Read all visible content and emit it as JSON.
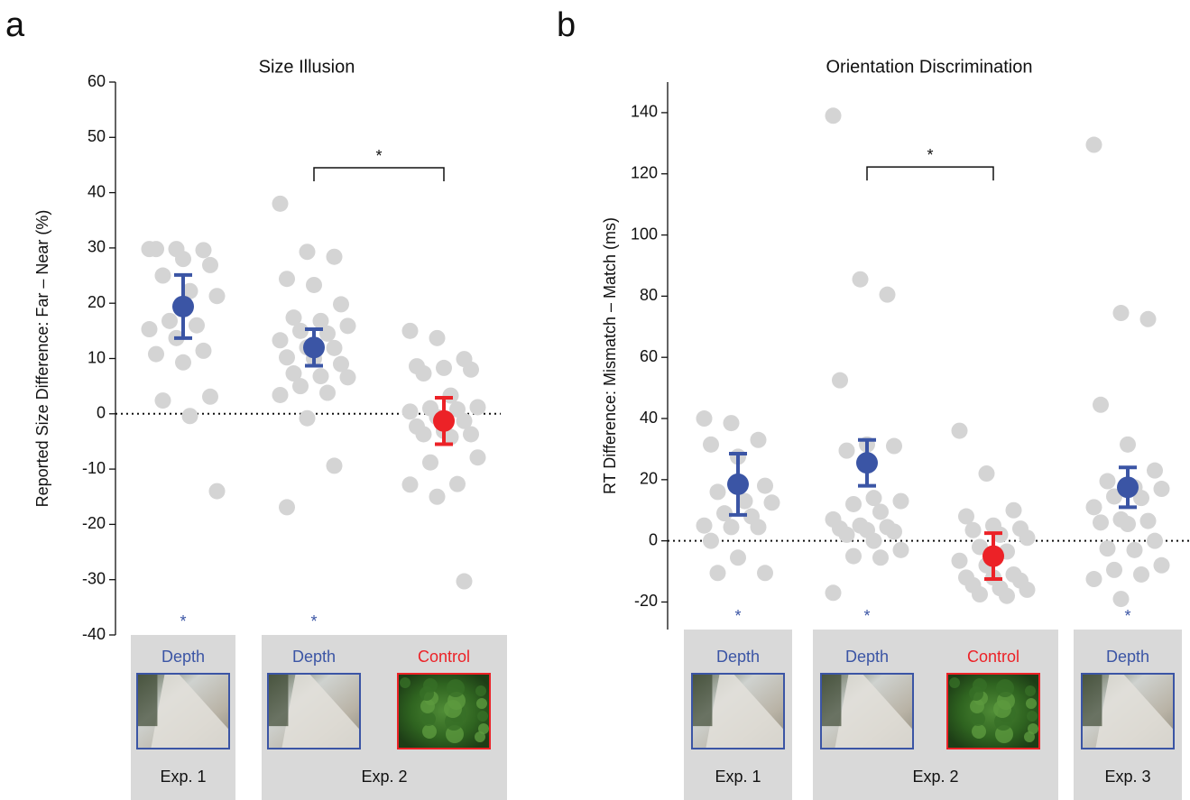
{
  "chart_data": [
    {
      "type": "dotplot",
      "panel": "a",
      "title": "Size Illusion",
      "y_label": "Reported Size Difference: Far – Near (%)",
      "ylim": [
        -40,
        60
      ],
      "yticks": [
        -40,
        -30,
        -20,
        -10,
        0,
        10,
        20,
        30,
        40,
        50,
        60
      ],
      "reference_line": 0,
      "bracket": {
        "groups": [
          1,
          2
        ],
        "label": "*"
      },
      "point_color": "#d4d4d4",
      "experiments": [
        {
          "label": "Exp. 1",
          "groups": [
            {
              "name": "Depth",
              "color": "#3b55a5",
              "mean": 19.4,
              "error": 5.7,
              "significance": "*",
              "values": [
                29.8,
                29.8,
                29.6,
                29.8,
                28,
                26.9,
                25,
                22.2,
                21.3,
                16.8,
                16,
                15.3,
                13.7,
                11.4,
                10.8,
                9.3,
                3.1,
                2.4,
                -0.4,
                -14
              ]
            }
          ]
        },
        {
          "label": "Exp. 2",
          "groups": [
            {
              "name": "Depth",
              "color": "#3b55a5",
              "mean": 12,
              "error": 3.3,
              "significance": "*",
              "values": [
                38,
                29.3,
                28.4,
                24.4,
                23.3,
                19.8,
                17.4,
                16.8,
                15.9,
                15,
                14.5,
                13.3,
                12,
                11.9,
                10.2,
                10,
                9,
                7.3,
                6.8,
                6.6,
                5,
                3.8,
                3.4,
                -0.8,
                -9.4,
                -16.9
              ]
            },
            {
              "name": "Control",
              "color": "#ec2227",
              "mean": -1.3,
              "error": 4.2,
              "values": [
                15,
                13.7,
                9.9,
                8.6,
                8.3,
                8,
                7.3,
                3.3,
                1.2,
                1,
                0.8,
                0.4,
                -0.6,
                -1.3,
                -2.3,
                -3.1,
                -3.7,
                -3.7,
                -4.2,
                -7.9,
                -8.8,
                -12.7,
                -12.8,
                -15,
                -30.3
              ]
            }
          ]
        }
      ]
    },
    {
      "type": "dotplot",
      "panel": "b",
      "title": "Orientation Discrimination",
      "y_label": "RT Difference: Mismatch – Match (ms)",
      "ylim": [
        -29,
        150
      ],
      "yticks": [
        -20,
        0,
        20,
        40,
        60,
        80,
        100,
        120,
        140
      ],
      "reference_line": 0,
      "bracket": {
        "groups": [
          1,
          2
        ],
        "label": "*"
      },
      "point_color": "#d4d4d4",
      "experiments": [
        {
          "label": "Exp. 1",
          "groups": [
            {
              "name": "Depth",
              "color": "#3b55a5",
              "mean": 18.5,
              "error": 10,
              "significance": "*",
              "values": [
                40,
                38.5,
                33,
                31.5,
                27.5,
                18,
                16,
                13,
                12.5,
                9,
                8,
                5,
                4.5,
                4.5,
                0,
                -5.5,
                -10.5,
                -10.5
              ]
            }
          ]
        },
        {
          "label": "Exp. 2",
          "groups": [
            {
              "name": "Depth",
              "color": "#3b55a5",
              "mean": 25.5,
              "error": 7.5,
              "significance": "*",
              "values": [
                139,
                85.5,
                80.5,
                52.5,
                31.5,
                31,
                29.5,
                14,
                13,
                12,
                9.5,
                7,
                5,
                4.5,
                4,
                3.5,
                3,
                2,
                0,
                -3,
                -5,
                -5.5,
                -17
              ]
            },
            {
              "name": "Control",
              "color": "#ec2227",
              "mean": -5,
              "error": 7.5,
              "values": [
                36,
                22,
                10,
                8,
                5,
                4,
                3.5,
                2,
                1,
                -2,
                -3.5,
                -6.5,
                -8,
                -11,
                -12,
                -12,
                -13,
                -14.5,
                -15.5,
                -16,
                -17.5,
                -18
              ]
            }
          ]
        },
        {
          "label": "Exp. 3",
          "groups": [
            {
              "name": "Depth",
              "color": "#3b55a5",
              "mean": 17.5,
              "error": 6.5,
              "significance": "*",
              "values": [
                129.5,
                74.5,
                72.5,
                44.5,
                31.5,
                23,
                19.5,
                17.5,
                17,
                14.5,
                14,
                11,
                7,
                6.5,
                6,
                5.5,
                0,
                -2.5,
                -3,
                -8,
                -9.5,
                -11,
                -12.5,
                -19
              ]
            }
          ]
        }
      ]
    }
  ]
}
